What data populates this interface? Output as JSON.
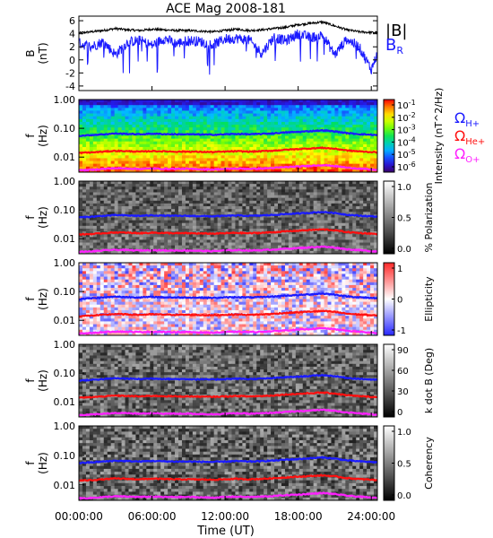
{
  "title": "ACE Mag 2008-181",
  "colors": {
    "btot": "#000000",
    "br": "#1a1aff",
    "h_plus": "#1a1aff",
    "he_plus": "#ff1010",
    "o_plus": "#ff20ff"
  },
  "xaxis": {
    "label": "Time (UT)",
    "range_hours": [
      0,
      24.5
    ],
    "ticks": [
      {
        "hours": 0,
        "label": "00:00:00"
      },
      {
        "hours": 6,
        "label": "06:00:00"
      },
      {
        "hours": 12,
        "label": "12:00:00"
      },
      {
        "hours": 18,
        "label": "18:00:00"
      },
      {
        "hours": 24,
        "label": "24:00:00"
      }
    ]
  },
  "chart_data": [
    {
      "type": "line",
      "ylabel": "B",
      "yunit": "(nT)",
      "ylim": [
        -4.7,
        6.7
      ],
      "yticks": [
        6,
        4,
        2,
        0,
        -2,
        -4
      ],
      "legend_placement": "right",
      "series": [
        {
          "name": "|B|",
          "color": "#000000",
          "x": [
            0,
            1,
            2,
            3,
            4,
            5,
            6,
            7,
            8,
            9,
            10,
            11,
            12,
            13,
            14,
            15,
            16,
            17,
            18,
            19,
            20,
            21,
            22,
            23,
            24,
            24.5
          ],
          "y": [
            4.1,
            4.3,
            4.5,
            4.8,
            4.6,
            4.5,
            4.7,
            4.6,
            4.5,
            4.5,
            4.4,
            4.3,
            4.5,
            4.7,
            4.5,
            4.6,
            4.8,
            5.0,
            5.4,
            5.6,
            5.8,
            5.2,
            4.6,
            4.3,
            4.2,
            4.2
          ]
        },
        {
          "name": "B_R",
          "color": "#1a1aff",
          "x": [
            0,
            1,
            2,
            3,
            4,
            5,
            6,
            7,
            8,
            9,
            10,
            11,
            12,
            13,
            14,
            15,
            16,
            17,
            18,
            19,
            20,
            21,
            22,
            23,
            24,
            24.5
          ],
          "y": [
            2.6,
            2.0,
            2.8,
            0.8,
            2.7,
            3.0,
            2.2,
            3.3,
            2.5,
            3.0,
            2.8,
            2.3,
            3.2,
            3.3,
            3.0,
            1.0,
            3.5,
            2.9,
            4.0,
            3.4,
            3.8,
            0.8,
            3.2,
            2.0,
            -1.5,
            1.0
          ]
        }
      ]
    },
    {
      "type": "heatmap",
      "ylabel": "f",
      "yunit": "(Hz)",
      "yscale": "log",
      "ylim": [
        0.003,
        1.0
      ],
      "yticks": [
        "1.00",
        "0.10",
        "0.01"
      ],
      "colorbar": {
        "label": "Intensity (nT^2/Hz)",
        "scale": "log",
        "ticks": [
          "10^-1",
          "10^-2",
          "10^-3",
          "10^-4",
          "10^-5",
          "10^-6"
        ],
        "colormap": "rainbow"
      },
      "legend_placement": "right",
      "legend": [
        {
          "name": "Ω",
          "sub": "H+",
          "color": "#1a1aff"
        },
        {
          "name": "Ω",
          "sub": "He+",
          "color": "#ff1010"
        },
        {
          "name": "Ω",
          "sub": "O+",
          "color": "#ff20ff"
        }
      ]
    },
    {
      "type": "heatmap",
      "ylabel": "f",
      "yunit": "(Hz)",
      "yscale": "log",
      "ylim": [
        0.003,
        1.0
      ],
      "yticks": [
        "1.00",
        "0.10",
        "0.01"
      ],
      "colorbar": {
        "label": "% Polarization",
        "ticks": [
          "1.0",
          "0.5",
          "0.0"
        ],
        "colormap": "gray"
      }
    },
    {
      "type": "heatmap",
      "ylabel": "f",
      "yunit": "(Hz)",
      "yscale": "log",
      "ylim": [
        0.003,
        1.0
      ],
      "yticks": [
        "1.00",
        "0.10",
        "0.01"
      ],
      "colorbar": {
        "label": "Ellipticity",
        "ticks": [
          "1",
          "0",
          "-1"
        ],
        "colormap": "blue-white-red"
      }
    },
    {
      "type": "heatmap",
      "ylabel": "f",
      "yunit": "(Hz)",
      "yscale": "log",
      "ylim": [
        0.003,
        1.0
      ],
      "yticks": [
        "1.00",
        "0.10",
        "0.01"
      ],
      "colorbar": {
        "label": "k dot B (Deg)",
        "ticks": [
          "90",
          "60",
          "30",
          "0"
        ],
        "colormap": "gray"
      }
    },
    {
      "type": "heatmap",
      "ylabel": "f",
      "yunit": "(Hz)",
      "yscale": "log",
      "ylim": [
        0.003,
        1.0
      ],
      "yticks": [
        "1.00",
        "0.10",
        "0.01"
      ],
      "colorbar": {
        "label": "Coherency",
        "ticks": [
          "1.0",
          "0.5",
          "0.0"
        ],
        "colormap": "gray"
      }
    }
  ],
  "gyrofrequency_lines": {
    "x": [
      0,
      1,
      2,
      3,
      4,
      5,
      6,
      7,
      8,
      9,
      10,
      11,
      12,
      13,
      14,
      15,
      16,
      17,
      18,
      19,
      20,
      21,
      22,
      23,
      24,
      24.5
    ],
    "h_plus_hz": [
      0.055,
      0.058,
      0.062,
      0.066,
      0.064,
      0.062,
      0.065,
      0.063,
      0.062,
      0.062,
      0.061,
      0.06,
      0.062,
      0.064,
      0.062,
      0.064,
      0.067,
      0.072,
      0.075,
      0.08,
      0.085,
      0.078,
      0.068,
      0.063,
      0.06,
      0.058
    ],
    "he_plus_hz": [
      0.014,
      0.0145,
      0.0155,
      0.0165,
      0.016,
      0.0155,
      0.0162,
      0.0158,
      0.0155,
      0.0155,
      0.0152,
      0.015,
      0.0155,
      0.016,
      0.0155,
      0.016,
      0.0168,
      0.018,
      0.019,
      0.02,
      0.021,
      0.0195,
      0.017,
      0.0158,
      0.015,
      0.0145
    ],
    "o_plus_hz": [
      0.0035,
      0.0036,
      0.0039,
      0.0041,
      0.004,
      0.0039,
      0.004,
      0.0039,
      0.0039,
      0.0039,
      0.0038,
      0.0037,
      0.0039,
      0.004,
      0.0039,
      0.004,
      0.0042,
      0.0045,
      0.0047,
      0.005,
      0.0053,
      0.0049,
      0.0043,
      0.004,
      0.0037,
      0.0036
    ]
  }
}
